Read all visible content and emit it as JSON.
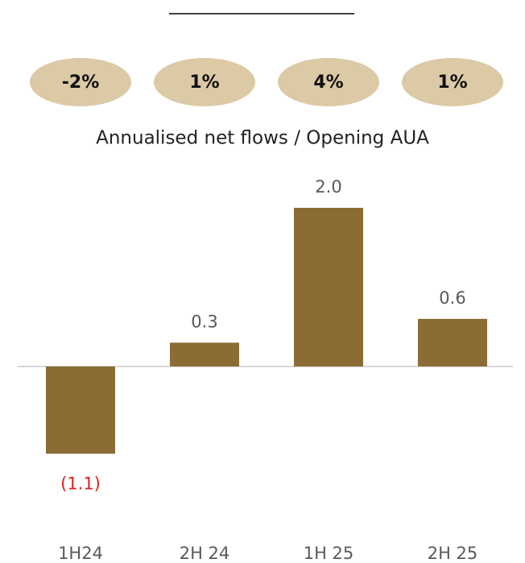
{
  "chart_data": {
    "type": "bar",
    "subtitle": "Annualised net flows / Opening AUA",
    "pill_labels": [
      "-2%",
      "1%",
      "4%",
      "1%"
    ],
    "categories": [
      "1H24",
      "2H 24",
      "1H 25",
      "2H 25"
    ],
    "values": [
      -1.1,
      0.3,
      2.0,
      0.6
    ],
    "value_labels": [
      "(1.1)",
      "0.3",
      "2.0",
      "0.6"
    ],
    "color": "#8b6c35"
  }
}
